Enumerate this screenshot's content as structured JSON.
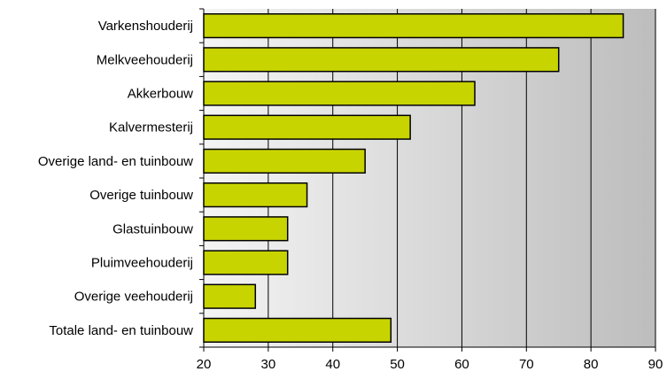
{
  "chart_data": {
    "type": "bar",
    "orientation": "horizontal",
    "categories": [
      "Varkenshouderij",
      "Melkveehouderij",
      "Akkerbouw",
      "Kalvermesterij",
      "Overige land- en tuinbouw",
      "Overige tuinbouw",
      "Glastuinbouw",
      "Pluimveehouderij",
      "Overige veehouderij",
      "Totale land- en tuinbouw"
    ],
    "values": [
      85,
      75,
      62,
      52,
      45,
      36,
      33,
      33,
      28,
      49
    ],
    "xlim": [
      20,
      90
    ],
    "xticks": [
      20,
      30,
      40,
      50,
      60,
      70,
      80,
      90
    ],
    "grid": "vertical",
    "legend": "none",
    "title": "",
    "xlabel": "",
    "ylabel": ""
  },
  "colors": {
    "bar_fill": "#C8D400",
    "bar_stroke": "#000000",
    "plot_bg_left": "#F4F4F4",
    "plot_bg_right": "#BDBDBD",
    "grid": "#000000",
    "text": "#000000"
  }
}
